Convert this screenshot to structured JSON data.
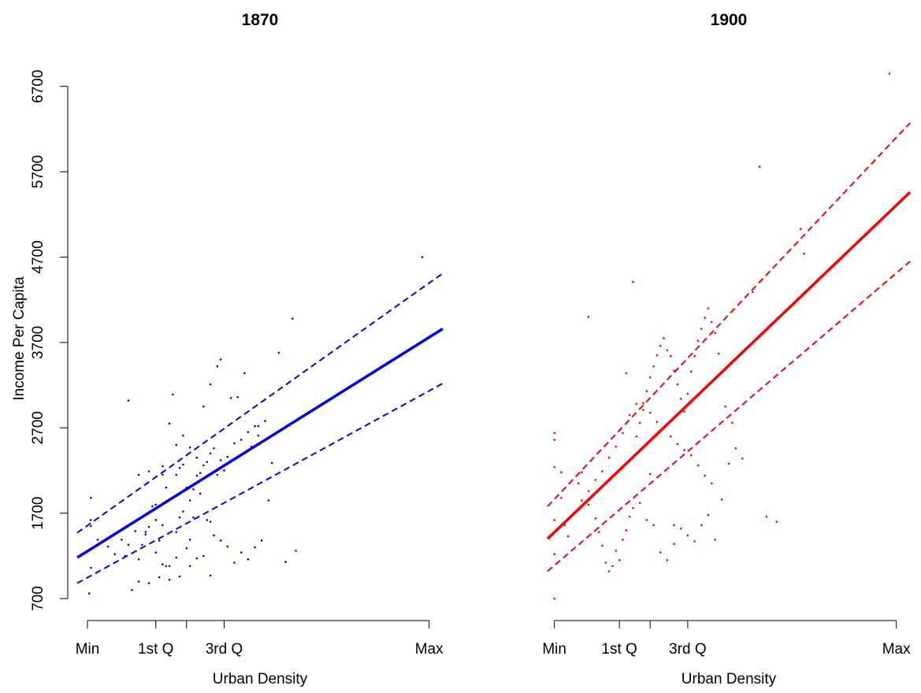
{
  "chart_data": [
    {
      "type": "scatter",
      "title": "1870",
      "xlabel": "Urban Density",
      "ylabel": "Income Per Capita",
      "x_ticks": [
        {
          "label": "Min",
          "x": 0
        },
        {
          "label": "1st Q",
          "x": 0.2
        },
        {
          "label": "",
          "x": 0.29
        },
        {
          "label": "3rd Q",
          "x": 0.4
        },
        {
          "label": "Max",
          "x": 1
        }
      ],
      "xlim": [
        -0.03,
        1.04
      ],
      "y_ticks": [
        700,
        1700,
        2700,
        3700,
        4700,
        5700,
        6700
      ],
      "ylim": [
        470,
        7020
      ],
      "color": "#0000ff",
      "fit_line": {
        "x": [
          -0.03,
          1.04
        ],
        "y": [
          1180,
          3860
        ]
      },
      "ci_upper": {
        "x": [
          -0.03,
          1.04
        ],
        "y": [
          1470,
          4510
        ]
      },
      "ci_lower": {
        "x": [
          -0.03,
          1.04
        ],
        "y": [
          880,
          3220
        ]
      },
      "points": [
        [
          0.01,
          1880
        ],
        [
          0.01,
          1620
        ],
        [
          0.01,
          1550
        ],
        [
          0.01,
          1060
        ],
        [
          0.005,
          760
        ],
        [
          0.03,
          1390
        ],
        [
          0.06,
          1310
        ],
        [
          0.08,
          1220
        ],
        [
          0.11,
          1200
        ],
        [
          0.15,
          1160
        ],
        [
          0.16,
          1330
        ],
        [
          0.17,
          1450
        ],
        [
          0.18,
          1540
        ],
        [
          0.2,
          1620
        ],
        [
          0.21,
          1380
        ],
        [
          0.22,
          1560
        ],
        [
          0.15,
          2150
        ],
        [
          0.18,
          2190
        ],
        [
          0.19,
          1780
        ],
        [
          0.2,
          1800
        ],
        [
          0.12,
          3020
        ],
        [
          0.22,
          1100
        ],
        [
          0.23,
          1080
        ],
        [
          0.21,
          950
        ],
        [
          0.18,
          880
        ],
        [
          0.15,
          900
        ],
        [
          0.13,
          800
        ],
        [
          0.24,
          920
        ],
        [
          0.26,
          1480
        ],
        [
          0.27,
          1650
        ],
        [
          0.28,
          1720
        ],
        [
          0.3,
          1850
        ],
        [
          0.31,
          1980
        ],
        [
          0.32,
          2140
        ],
        [
          0.33,
          2170
        ],
        [
          0.34,
          2260
        ],
        [
          0.35,
          2300
        ],
        [
          0.36,
          2400
        ],
        [
          0.37,
          2460
        ],
        [
          0.38,
          2150
        ],
        [
          0.39,
          2320
        ],
        [
          0.4,
          2200
        ],
        [
          0.41,
          2360
        ],
        [
          0.43,
          2520
        ],
        [
          0.45,
          2560
        ],
        [
          0.47,
          2650
        ],
        [
          0.48,
          2480
        ],
        [
          0.5,
          2720
        ],
        [
          0.52,
          2780
        ],
        [
          0.54,
          2290
        ],
        [
          0.38,
          3420
        ],
        [
          0.39,
          3500
        ],
        [
          0.36,
          3210
        ],
        [
          0.34,
          2950
        ],
        [
          0.42,
          3050
        ],
        [
          0.44,
          3060
        ],
        [
          0.46,
          3340
        ],
        [
          0.49,
          2720
        ],
        [
          0.5,
          2610
        ],
        [
          0.3,
          2470
        ],
        [
          0.28,
          2610
        ],
        [
          0.26,
          2500
        ],
        [
          0.24,
          2750
        ],
        [
          0.25,
          3090
        ],
        [
          0.22,
          2150
        ],
        [
          0.23,
          2000
        ],
        [
          0.27,
          2230
        ],
        [
          0.28,
          2270
        ],
        [
          0.29,
          2000
        ],
        [
          0.31,
          1650
        ],
        [
          0.33,
          1930
        ],
        [
          0.35,
          1620
        ],
        [
          0.37,
          1440
        ],
        [
          0.39,
          1380
        ],
        [
          0.41,
          1310
        ],
        [
          0.43,
          1120
        ],
        [
          0.45,
          1240
        ],
        [
          0.47,
          1160
        ],
        [
          0.49,
          1300
        ],
        [
          0.51,
          1380
        ],
        [
          0.53,
          1850
        ],
        [
          0.56,
          3580
        ],
        [
          0.58,
          1130
        ],
        [
          0.61,
          1260
        ],
        [
          0.36,
          1600
        ],
        [
          0.32,
          1170
        ],
        [
          0.29,
          1290
        ],
        [
          0.3,
          1390
        ],
        [
          0.34,
          1200
        ],
        [
          0.36,
          970
        ],
        [
          0.27,
          960
        ],
        [
          0.3,
          1080
        ],
        [
          0.24,
          1080
        ],
        [
          0.26,
          1180
        ],
        [
          0.2,
          1240
        ],
        [
          0.17,
          1480
        ],
        [
          0.14,
          1490
        ],
        [
          0.12,
          1330
        ],
        [
          0.1,
          1390
        ],
        [
          0.6,
          3980
        ],
        [
          0.98,
          4700
        ],
        [
          0.22,
          2250
        ],
        [
          0.26,
          2150
        ],
        [
          0.32,
          2350
        ]
      ]
    },
    {
      "type": "scatter",
      "title": "1900",
      "xlabel": "Urban Density",
      "ylabel": "",
      "x_ticks": [
        {
          "label": "Min",
          "x": 0
        },
        {
          "label": "1st Q",
          "x": 0.19
        },
        {
          "label": "",
          "x": 0.28
        },
        {
          "label": "3rd Q",
          "x": 0.39
        },
        {
          "label": "Max",
          "x": 1
        }
      ],
      "xlim": [
        -0.02,
        1.04
      ],
      "y_ticks": [
        700,
        1700,
        2700,
        3700,
        4700,
        5700,
        6700
      ],
      "ylim": [
        470,
        7020
      ],
      "color": "#ff0000",
      "fit_line": {
        "x": [
          -0.02,
          1.04
        ],
        "y": [
          1400,
          5460
        ]
      },
      "ci_upper": {
        "x": [
          -0.02,
          1.04
        ],
        "y": [
          1780,
          6270
        ]
      },
      "ci_lower": {
        "x": [
          -0.02,
          1.04
        ],
        "y": [
          1020,
          4650
        ]
      },
      "points": [
        [
          0,
          1620
        ],
        [
          0,
          1220
        ],
        [
          0,
          700
        ],
        [
          0,
          2240
        ],
        [
          0,
          2640
        ],
        [
          0,
          2560
        ],
        [
          0.02,
          2180
        ],
        [
          0.02,
          1880
        ],
        [
          0.03,
          1560
        ],
        [
          0.04,
          1430
        ],
        [
          0.07,
          2050
        ],
        [
          0.08,
          2180
        ],
        [
          0.1,
          1800
        ],
        [
          0.12,
          1640
        ],
        [
          0.13,
          1480
        ],
        [
          0.14,
          1320
        ],
        [
          0.15,
          1120
        ],
        [
          0.16,
          1020
        ],
        [
          0.17,
          1080
        ],
        [
          0.18,
          1260
        ],
        [
          0.19,
          1150
        ],
        [
          0.2,
          1390
        ],
        [
          0.21,
          1500
        ],
        [
          0.22,
          1660
        ],
        [
          0.23,
          1760
        ],
        [
          0.25,
          1820
        ],
        [
          0.27,
          1620
        ],
        [
          0.29,
          1560
        ],
        [
          0.31,
          1240
        ],
        [
          0.33,
          1150
        ],
        [
          0.35,
          1340
        ],
        [
          0.37,
          1520
        ],
        [
          0.39,
          1440
        ],
        [
          0.41,
          1370
        ],
        [
          0.43,
          1560
        ],
        [
          0.45,
          1680
        ],
        [
          0.47,
          1390
        ],
        [
          0.49,
          1860
        ],
        [
          0.51,
          2280
        ],
        [
          0.53,
          2460
        ],
        [
          0.46,
          2050
        ],
        [
          0.44,
          2140
        ],
        [
          0.42,
          2260
        ],
        [
          0.4,
          2380
        ],
        [
          0.38,
          2440
        ],
        [
          0.36,
          2510
        ],
        [
          0.34,
          2600
        ],
        [
          0.32,
          2700
        ],
        [
          0.3,
          2770
        ],
        [
          0.28,
          2880
        ],
        [
          0.26,
          2910
        ],
        [
          0.24,
          2980
        ],
        [
          0.22,
          2850
        ],
        [
          0.2,
          2640
        ],
        [
          0.18,
          2480
        ],
        [
          0.16,
          2350
        ],
        [
          0.14,
          2190
        ],
        [
          0.12,
          2090
        ],
        [
          0.1,
          1960
        ],
        [
          0.08,
          1850
        ],
        [
          0.24,
          2600
        ],
        [
          0.25,
          2760
        ],
        [
          0.26,
          2990
        ],
        [
          0.27,
          3130
        ],
        [
          0.28,
          3290
        ],
        [
          0.29,
          3420
        ],
        [
          0.3,
          3550
        ],
        [
          0.31,
          3660
        ],
        [
          0.32,
          3750
        ],
        [
          0.33,
          3610
        ],
        [
          0.34,
          3540
        ],
        [
          0.35,
          3370
        ],
        [
          0.36,
          3210
        ],
        [
          0.37,
          3040
        ],
        [
          0.38,
          2890
        ],
        [
          0.39,
          3100
        ],
        [
          0.4,
          3360
        ],
        [
          0.41,
          3540
        ],
        [
          0.42,
          3720
        ],
        [
          0.43,
          3860
        ],
        [
          0.44,
          3990
        ],
        [
          0.45,
          4100
        ],
        [
          0.46,
          3940
        ],
        [
          0.47,
          3810
        ],
        [
          0.48,
          3570
        ],
        [
          0.5,
          2950
        ],
        [
          0.52,
          2760
        ],
        [
          0.55,
          2340
        ],
        [
          0.58,
          4290
        ],
        [
          0.6,
          5760
        ],
        [
          0.62,
          1660
        ],
        [
          0.65,
          1600
        ],
        [
          0.72,
          5030
        ],
        [
          0.73,
          4740
        ],
        [
          0.98,
          6850
        ],
        [
          0.23,
          4410
        ],
        [
          0.1,
          4000
        ],
        [
          0.21,
          3340
        ],
        [
          0.28,
          2160
        ],
        [
          0.35,
          1560
        ]
      ]
    }
  ]
}
